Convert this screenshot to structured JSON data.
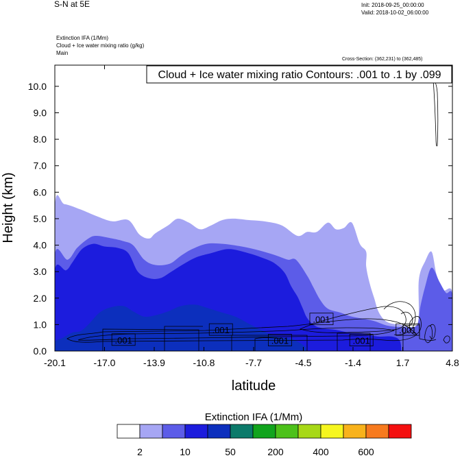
{
  "header": {
    "title": "S-N at 5E",
    "init": "Init: 2018-09-25_00:00:00",
    "valid": "Valid: 2018-10-02_06:00:00",
    "field1": "Extinction IFA   (1/Mm)",
    "field2": "Cloud + Ice water mixing ratio   (g/kg)",
    "field3": "Main",
    "cross_section": "Cross-Section: (362,231) to (362,485)"
  },
  "chart_data": {
    "type": "heatmap",
    "title": "S-N at 5E",
    "contour_label": "Cloud + Ice water mixing ratio Contours: .001 to .1 by .099",
    "xlabel": "latitude",
    "ylabel": "Height (km)",
    "x_ticks": [
      "-20.1",
      "-17.0",
      "-13.9",
      "-10.8",
      "-7.7",
      "-4.5",
      "-1.4",
      "1.7",
      "4.8"
    ],
    "y_ticks": [
      "0.0",
      "1.0",
      "2.0",
      "3.0",
      "4.0",
      "5.0",
      "6.0",
      "7.0",
      "8.0",
      "9.0",
      "10.0"
    ],
    "xlim": [
      -20.1,
      4.8
    ],
    "ylim": [
      0.0,
      10.8
    ],
    "contour_labels": [
      {
        "text": ".001",
        "x": -15.8,
        "y": 0.42
      },
      {
        "text": ".001",
        "x": -9.7,
        "y": 0.8
      },
      {
        "text": ".001",
        "x": -6.0,
        "y": 0.4
      },
      {
        "text": ".001",
        "x": -3.4,
        "y": 1.2
      },
      {
        "text": ".001",
        "x": -0.9,
        "y": 0.4
      },
      {
        "text": ".001",
        "x": 2.0,
        "y": 0.8
      }
    ],
    "shaded_layers": [
      {
        "level": "2-10",
        "color": "#a6a6f4",
        "outline": [
          [
            -20.1,
            0
          ],
          [
            -20.1,
            5.45
          ],
          [
            -19.5,
            5.55
          ],
          [
            -18.5,
            5.35
          ],
          [
            -17.5,
            5.1
          ],
          [
            -16.5,
            4.9
          ],
          [
            -15.5,
            4.95
          ],
          [
            -14.8,
            4.4
          ],
          [
            -14.2,
            4.25
          ],
          [
            -13.8,
            4.45
          ],
          [
            -13.0,
            4.75
          ],
          [
            -12.4,
            5.0
          ],
          [
            -11.7,
            4.85
          ],
          [
            -11.0,
            4.6
          ],
          [
            -10.3,
            4.75
          ],
          [
            -9.6,
            4.95
          ],
          [
            -8.9,
            5.0
          ],
          [
            -8.0,
            4.95
          ],
          [
            -7.0,
            4.9
          ],
          [
            -5.9,
            4.75
          ],
          [
            -4.9,
            4.35
          ],
          [
            -4.3,
            4.5
          ],
          [
            -3.7,
            4.5
          ],
          [
            -3.0,
            4.85
          ],
          [
            -2.5,
            4.6
          ],
          [
            -2.0,
            4.65
          ],
          [
            -1.5,
            4.85
          ],
          [
            -1.0,
            4.05
          ],
          [
            -0.6,
            3.75
          ],
          [
            -0.6,
            3.2
          ],
          [
            -0.4,
            2.6
          ],
          [
            -0.1,
            2.0
          ],
          [
            0.2,
            1.45
          ],
          [
            0.7,
            1.1
          ],
          [
            1.5,
            1.0
          ],
          [
            2.6,
            1.0
          ],
          [
            2.7,
            2.7
          ],
          [
            3.1,
            3.4
          ],
          [
            3.5,
            3.75
          ],
          [
            3.8,
            2.9
          ],
          [
            4.2,
            2.3
          ],
          [
            4.8,
            2.2
          ],
          [
            4.8,
            0
          ]
        ]
      },
      {
        "level": "10-50",
        "color": "#5c5ce8",
        "outline": [
          [
            -20.1,
            0
          ],
          [
            -20.1,
            3.65
          ],
          [
            -19.3,
            3.45
          ],
          [
            -18.7,
            3.9
          ],
          [
            -18.0,
            4.25
          ],
          [
            -17.5,
            4.35
          ],
          [
            -16.5,
            4.25
          ],
          [
            -15.8,
            4.15
          ],
          [
            -15.2,
            4.0
          ],
          [
            -14.5,
            3.45
          ],
          [
            -13.8,
            3.25
          ],
          [
            -12.9,
            3.3
          ],
          [
            -12.2,
            3.6
          ],
          [
            -11.5,
            3.85
          ],
          [
            -10.6,
            4.05
          ],
          [
            -9.6,
            4.05
          ],
          [
            -8.4,
            3.95
          ],
          [
            -7.3,
            3.8
          ],
          [
            -6.2,
            3.6
          ],
          [
            -5.5,
            3.45
          ],
          [
            -5.0,
            3.45
          ],
          [
            -4.3,
            2.85
          ],
          [
            -3.9,
            2.4
          ],
          [
            -3.5,
            1.95
          ],
          [
            -3.0,
            1.6
          ],
          [
            -2.2,
            1.45
          ],
          [
            -1.5,
            1.3
          ],
          [
            -0.2,
            1.15
          ],
          [
            0.8,
            0.95
          ],
          [
            2.0,
            0.9
          ],
          [
            2.6,
            1.0
          ],
          [
            2.8,
            1.7
          ],
          [
            3.1,
            2.45
          ],
          [
            3.5,
            3.15
          ],
          [
            4.0,
            2.6
          ],
          [
            4.4,
            2.2
          ],
          [
            4.8,
            2.1
          ],
          [
            4.8,
            0
          ]
        ]
      },
      {
        "level": "50-200",
        "color": "#1c1cdd",
        "outline": [
          [
            -20.1,
            0
          ],
          [
            -20.1,
            3.05
          ],
          [
            -19.4,
            3.05
          ],
          [
            -19.0,
            3.35
          ],
          [
            -18.4,
            3.85
          ],
          [
            -17.7,
            4.05
          ],
          [
            -17.0,
            3.95
          ],
          [
            -16.2,
            3.9
          ],
          [
            -15.5,
            3.7
          ],
          [
            -14.9,
            3.0
          ],
          [
            -14.2,
            2.75
          ],
          [
            -13.5,
            2.75
          ],
          [
            -12.8,
            3.0
          ],
          [
            -12.0,
            3.3
          ],
          [
            -11.2,
            3.55
          ],
          [
            -10.3,
            3.7
          ],
          [
            -9.2,
            3.85
          ],
          [
            -8.0,
            3.7
          ],
          [
            -7.0,
            3.5
          ],
          [
            -6.3,
            3.3
          ],
          [
            -5.7,
            2.95
          ],
          [
            -5.3,
            2.45
          ],
          [
            -4.9,
            2.05
          ],
          [
            -4.6,
            1.65
          ],
          [
            -4.3,
            1.25
          ],
          [
            -3.8,
            0.95
          ],
          [
            -3.2,
            0.85
          ],
          [
            -2.5,
            0.8
          ],
          [
            -1.7,
            0.7
          ],
          [
            -0.8,
            0.65
          ],
          [
            0.1,
            0.55
          ],
          [
            1.0,
            0.55
          ],
          [
            1.5,
            0.4
          ],
          [
            1.6,
            0
          ]
        ]
      },
      {
        "level": "200-400",
        "color": "#0c2fbd",
        "outline": [
          [
            -20.1,
            0
          ],
          [
            -20.1,
            0.35
          ],
          [
            -19.6,
            0.5
          ],
          [
            -19.0,
            0.7
          ],
          [
            -18.5,
            0.75
          ],
          [
            -18.0,
            1.0
          ],
          [
            -17.3,
            1.45
          ],
          [
            -16.6,
            1.65
          ],
          [
            -15.8,
            1.7
          ],
          [
            -15.2,
            1.5
          ],
          [
            -14.5,
            1.3
          ],
          [
            -13.8,
            1.35
          ],
          [
            -13.0,
            1.5
          ],
          [
            -12.2,
            1.7
          ],
          [
            -11.3,
            1.75
          ],
          [
            -10.4,
            1.6
          ],
          [
            -9.6,
            1.45
          ],
          [
            -8.8,
            1.3
          ],
          [
            -8.0,
            1.05
          ],
          [
            -7.2,
            0.8
          ],
          [
            -6.5,
            0.6
          ],
          [
            -5.8,
            0.5
          ],
          [
            -5.2,
            0.45
          ],
          [
            -4.5,
            0.2
          ],
          [
            -4.3,
            0
          ]
        ]
      }
    ],
    "colorbar": {
      "title": "Extinction IFA   (1/Mm)",
      "colors": [
        "#ffffff",
        "#a6a6f4",
        "#5c5ce8",
        "#1c1cdd",
        "#0c2fbd",
        "#0b7a6a",
        "#11a41d",
        "#4cc11a",
        "#a7d817",
        "#f6f61f",
        "#f8b21b",
        "#f77a1e",
        "#f41010"
      ],
      "labels": [
        "2",
        "10",
        "50",
        "200",
        "400",
        "600"
      ]
    }
  }
}
